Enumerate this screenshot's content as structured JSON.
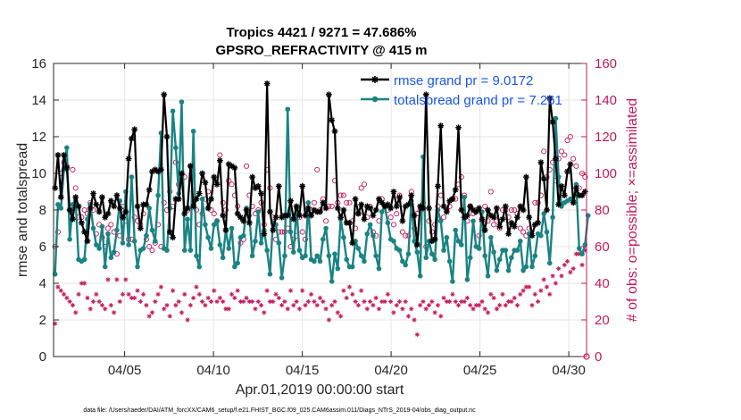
{
  "chart_data": {
    "type": "line",
    "title": [
      "Tropics 4421 / 9271 = 47.686%",
      "GPSRO_REFRACTIVITY @ 415 m"
    ],
    "xlabel": "Apr.01,2019 00:00:00 start",
    "ylabel": "rmse and totalspread",
    "ylabel_right": "# of obs: o=possible; ×=assimilated",
    "xlim": [
      1,
      31
    ],
    "ylim": [
      0,
      16
    ],
    "ylim_right": [
      0,
      160
    ],
    "x_ticks": [
      5,
      10,
      15,
      20,
      25,
      30
    ],
    "x_tick_labels": [
      "04/05",
      "04/10",
      "04/15",
      "04/20",
      "04/25",
      "04/30"
    ],
    "y_ticks": [
      0,
      2,
      4,
      6,
      8,
      10,
      12,
      14,
      16
    ],
    "y_ticks_right": [
      0,
      20,
      40,
      60,
      80,
      100,
      120,
      140,
      160
    ],
    "grid": true,
    "legend_position": "top-right",
    "colors": {
      "rmse": "#000000",
      "spread": "#1a8383",
      "obs": "#c2185b",
      "legend_text": "#1a56e8",
      "right_axis": "#c2185b"
    },
    "series": [
      {
        "name": "rmse grand pr = 9.0172",
        "marker": "asterisk",
        "values": [
          9.2,
          11.0,
          8.7,
          11.0,
          10.3,
          8.0,
          7.5,
          8.7,
          8.2,
          7.3,
          6.8,
          6.3,
          8.1,
          8.9,
          8.3,
          7.9,
          8.7,
          7.6,
          7.8,
          8.5,
          8.2,
          8.8,
          8.1,
          7.6,
          7.9,
          10.8,
          11.9,
          12.4,
          8.2,
          7.0,
          8.3,
          8.3,
          9.1,
          10.1,
          10.2,
          10.1,
          10.2,
          14.3,
          12.0,
          6.8,
          6.5,
          8.6,
          8.6,
          10.0,
          7.8,
          8.1,
          10.4,
          8.2,
          8.6,
          8.9,
          10.0,
          9.5,
          8.1,
          8.6,
          9.8,
          9.4,
          10.7,
          7.7,
          6.9,
          10.5,
          10.4,
          10.3,
          7.8,
          7.6,
          7.4,
          8.0,
          7.3,
          9.8,
          9.2,
          9.3,
          8.9,
          6.7,
          14.9,
          7.9,
          6.9,
          7.6,
          9.3,
          7.6,
          7.7,
          7.7,
          8.5,
          7.5,
          8.2,
          7.7,
          9.3,
          7.7,
          8.1,
          7.7,
          8.0,
          7.9,
          7.9,
          8.4,
          8.1,
          14.3,
          12.9,
          12.3,
          8.1,
          7.6,
          8.0,
          7.3,
          7.3,
          6.2,
          8.6,
          7.8,
          8.3,
          7.5,
          8.2,
          8.1,
          7.7,
          8.0,
          8.6,
          8.4,
          8.2,
          8.3,
          8.1,
          9.0,
          8.2,
          8.7,
          7.4,
          8.2,
          8.3,
          8.8,
          7.7,
          6.1,
          8.2,
          8.1,
          14.3,
          8.1,
          6.3,
          6.4,
          9.3,
          12.6,
          8.2,
          7.9,
          8.5,
          8.6,
          9.1,
          12.5,
          8.0,
          7.6,
          7.7,
          8.2,
          8.0,
          7.9,
          8.1,
          7.5,
          6.9,
          8.0,
          7.7,
          7.6,
          8.1,
          7.1,
          7.5,
          8.2,
          6.7,
          7.3,
          7.1,
          7.6,
          8.2,
          8.0,
          9.8,
          7.6,
          6.6,
          7.2,
          7.3,
          10.6,
          9.7,
          8.0,
          14.1,
          12.8,
          10.8,
          8.3,
          9.3,
          8.8,
          10.1,
          10.5,
          8.4,
          9.2,
          8.8,
          8.8,
          9.0
        ]
      },
      {
        "name": "totalspread grand pr = 7.261",
        "marker": "dot",
        "values": [
          4.5,
          8.3,
          8.1,
          10.2,
          11.4,
          6.4,
          8.3,
          8.5,
          5.3,
          5.2,
          5.3,
          7.5,
          8.3,
          7.0,
          6.1,
          5.9,
          7.1,
          4.9,
          6.7,
          5.4,
          5.7,
          6.9,
          8.5,
          6.2,
          9.0,
          6.1,
          9.8,
          6.3,
          4.9,
          5.8,
          5.9,
          6.6,
          8.1,
          6.9,
          6.3,
          8.8,
          12.2,
          5.9,
          5.8,
          8.1,
          13.4,
          11.4,
          8.9,
          13.9,
          5.8,
          7.5,
          5.8,
          12.3,
          5.5,
          4.9,
          8.6,
          7.2,
          6.5,
          5.9,
          7.2,
          7.4,
          6.1,
          5.4,
          6.9,
          5.9,
          7.0,
          4.9,
          5.1,
          6.5,
          6.6,
          8.1,
          7.7,
          5.5,
          6.3,
          7.9,
          6.2,
          6.9,
          5.8,
          4.5,
          7.3,
          7.2,
          6.2,
          4.3,
          5.5,
          13.5,
          6.8,
          5.7,
          8.1,
          5.8,
          5.4,
          5.5,
          8.4,
          5.3,
          5.2,
          5.5,
          5.2,
          6.4,
          7.0,
          5.5,
          4.1,
          5.6,
          4.8,
          7.5,
          6.5,
          5.3,
          4.9,
          4.9,
          6.3,
          5.9,
          5.5,
          5.2,
          6.7,
          7.2,
          6.6,
          5.5,
          4.8,
          7.9,
          8.2,
          7.3,
          6.4,
          6.3,
          5.9,
          5.8,
          5.2,
          5.0,
          5.6,
          8.5,
          6.3,
          5.7,
          4.4,
          10.9,
          5.4,
          6.3,
          5.6,
          5.3,
          8.0,
          7.4,
          5.8,
          6.5,
          5.2,
          4.1,
          6.9,
          6.3,
          6.1,
          8.7,
          4.2,
          5.4,
          7.4,
          6.0,
          5.9,
          7.9,
          5.5,
          4.4,
          6.5,
          5.7,
          4.7,
          5.3,
          5.8,
          5.8,
          4.7,
          5.4,
          5.8,
          5.8,
          6.3,
          4.7,
          4.9,
          6.7,
          4.9,
          5.5,
          6.7,
          6.6,
          7.8,
          6.8,
          5.1,
          7.6,
          13.0,
          9.8,
          8.2,
          8.4,
          8.5,
          8.6,
          8.5,
          9.4,
          5.9,
          5.6,
          6.1,
          7.7
        ]
      },
      {
        "name": "possible obs count",
        "axis": "right",
        "marker": "circle",
        "values": [
          60,
          68,
          100,
          106,
          104,
          80,
          102,
          92,
          76,
          76,
          80,
          78,
          84,
          80,
          67,
          72,
          65,
          60,
          70,
          72,
          68,
          56,
          66,
          82,
          74,
          64,
          64,
          76,
          74,
          72,
          78,
          64,
          60,
          58,
          62,
          72,
          60,
          84,
          80,
          90,
          82,
          106,
          94,
          96,
          98,
          80,
          104,
          90,
          80,
          72,
          78,
          86,
          90,
          80,
          78,
          74,
          110,
          84,
          80,
          96,
          94,
          88,
          82,
          62,
          64,
          104,
          88,
          82,
          78,
          80,
          84,
          72,
          102,
          92,
          76,
          64,
          68,
          68,
          68,
          70,
          60,
          64,
          66,
          76,
          68,
          64,
          78,
          80,
          84,
          102,
          80,
          86,
          74,
          82,
          82,
          96,
          84,
          88,
          88,
          84,
          84,
          74,
          70,
          78,
          92,
          94,
          76,
          82,
          68,
          66,
          74,
          86,
          82,
          80,
          76,
          72,
          78,
          88,
          68,
          66,
          66,
          90,
          70,
          78,
          80,
          84,
          60,
          74,
          68,
          72,
          82,
          88,
          76,
          80,
          82,
          86,
          86,
          94,
          98,
          88,
          74,
          82,
          78,
          80,
          66,
          74,
          82,
          74,
          90,
          72,
          74,
          70,
          80,
          80,
          76,
          80,
          80,
          78,
          70,
          68,
          66,
          70,
          70,
          84,
          84,
          88,
          112,
          98,
          102,
          106,
          96,
          108,
          112,
          110,
          118,
          120,
          108,
          104,
          92,
          100,
          98
        ]
      },
      {
        "name": "assimilated obs count",
        "axis": "right",
        "marker": "asterisk",
        "values": [
          18,
          38,
          36,
          34,
          32,
          30,
          28,
          24,
          34,
          40,
          40,
          32,
          26,
          30,
          34,
          30,
          28,
          26,
          42,
          28,
          24,
          42,
          30,
          34,
          42,
          34,
          32,
          32,
          36,
          30,
          34,
          28,
          22,
          24,
          30,
          34,
          38,
          26,
          28,
          22,
          36,
          28,
          30,
          24,
          34,
          20,
          28,
          32,
          38,
          34,
          30,
          28,
          32,
          30,
          36,
          30,
          32,
          30,
          26,
          26,
          34,
          32,
          36,
          30,
          30,
          32,
          30,
          30,
          26,
          30,
          28,
          24,
          36,
          30,
          30,
          34,
          32,
          28,
          30,
          26,
          36,
          28,
          30,
          26,
          36,
          28,
          30,
          34,
          30,
          28,
          32,
          30,
          26,
          20,
          28,
          30,
          24,
          22,
          36,
          32,
          38,
          34,
          30,
          28,
          36,
          30,
          26,
          30,
          28,
          32,
          26,
          30,
          30,
          34,
          30,
          24,
          28,
          30,
          26,
          30,
          22,
          26,
          20,
          12,
          28,
          30,
          26,
          28,
          30,
          24,
          28,
          22,
          32,
          30,
          30,
          34,
          30,
          28,
          30,
          30,
          32,
          28,
          26,
          28,
          28,
          30,
          26,
          24,
          34,
          32,
          26,
          28,
          34,
          28,
          30,
          30,
          32,
          28,
          34,
          36,
          38,
          38,
          28,
          34,
          30,
          36,
          42,
          38,
          34,
          44,
          40,
          48,
          44,
          50,
          52,
          46,
          48,
          56,
          56,
          50,
          58
        ]
      }
    ]
  },
  "footer": "data file: /Users/raeder/DAI/ATM_forcXX/CAM6_setup/f.e21.FHIST_BGC.f09_025.CAM6assim.011/Diags_NTrS_2019-04/obs_diag_output.nc"
}
